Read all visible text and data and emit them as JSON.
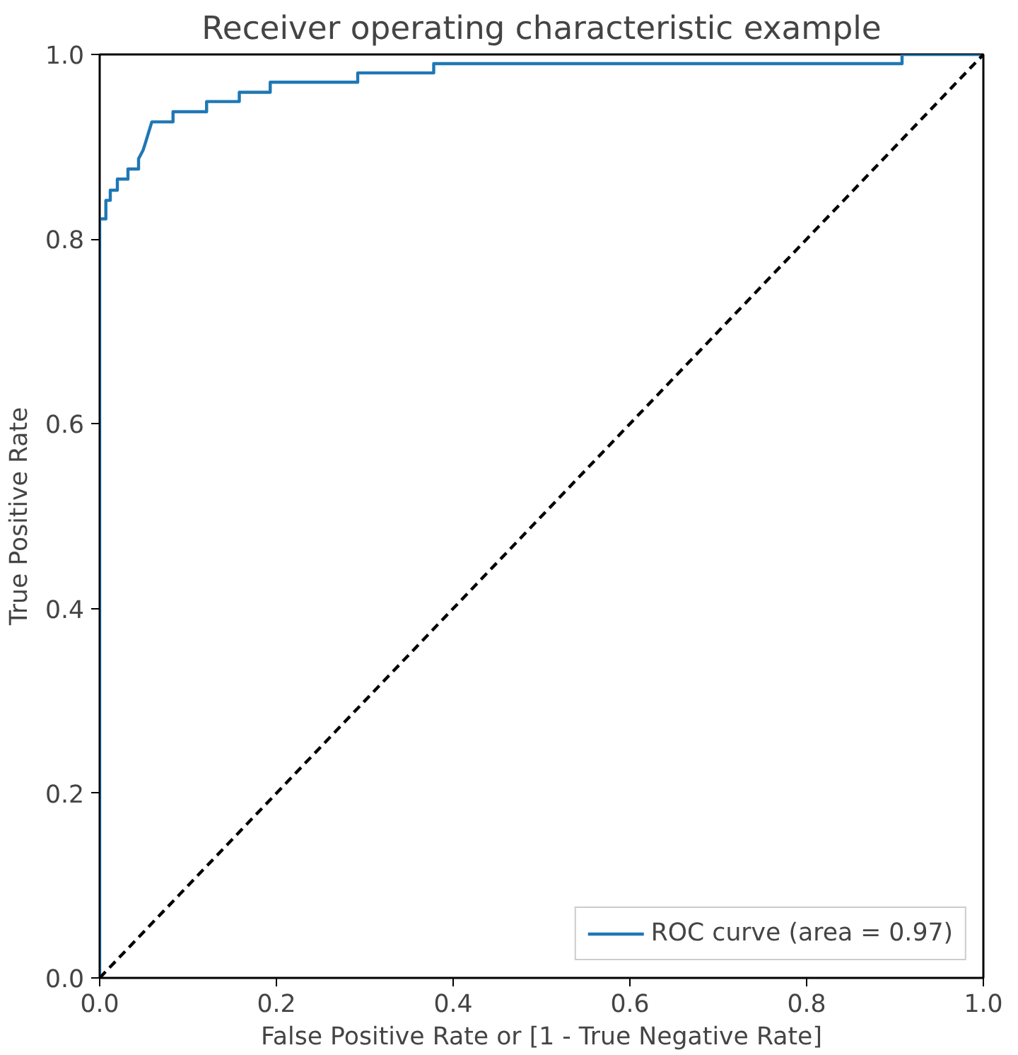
{
  "chart_data": {
    "type": "line",
    "title": "Receiver operating characteristic example",
    "xlabel": "False Positive Rate or [1 - True Negative Rate]",
    "ylabel": "True Positive Rate",
    "xlim": [
      0,
      1
    ],
    "ylim": [
      0,
      1
    ],
    "xticks": [
      {
        "value": 0,
        "label": "0.0"
      },
      0.2,
      0.4,
      0.6,
      0.8,
      {
        "value": 1,
        "label": "1.0"
      }
    ],
    "yticks": [
      {
        "value": 0,
        "label": "0.0"
      },
      0.2,
      0.4,
      0.6,
      0.8,
      {
        "value": 1,
        "label": "1.0"
      }
    ],
    "grid": false,
    "legend": "bottom right",
    "marker": "none",
    "series": [
      {
        "name": "ROC curve (area = 0.97)",
        "color": "#1f77b4",
        "line_style": "solid",
        "x": [
          0,
          0,
          0.007,
          0.007,
          0.012,
          0.012,
          0.02,
          0.02,
          0.032,
          0.032,
          0.044,
          0.044,
          0.049,
          0.052,
          0.059,
          0.083,
          0.083,
          0.121,
          0.121,
          0.158,
          0.158,
          0.193,
          0.193,
          0.292,
          0.292,
          0.378,
          0.378,
          0.908,
          0.908,
          1
        ],
        "values": [
          0,
          0.822,
          0.822,
          0.842,
          0.842,
          0.853,
          0.853,
          0.865,
          0.865,
          0.876,
          0.876,
          0.887,
          0.896,
          0.905,
          0.927,
          0.927,
          0.938,
          0.938,
          0.949,
          0.949,
          0.959,
          0.959,
          0.97,
          0.97,
          0.98,
          0.98,
          0.99,
          0.99,
          1,
          1
        ]
      },
      {
        "color": "#000000",
        "line_style": "dashed",
        "x": [
          0,
          1
        ],
        "values": [
          0,
          1
        ]
      }
    ]
  }
}
